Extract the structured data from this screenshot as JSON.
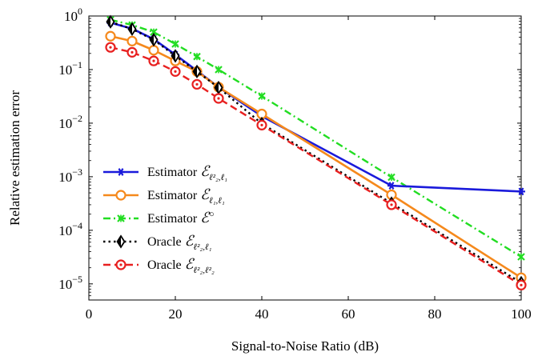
{
  "chart_data": {
    "type": "line",
    "xlabel": "Signal-to-Noise Ratio (dB)",
    "ylabel": "Relative estimation error",
    "xlim": [
      0,
      100
    ],
    "ylim": [
      5e-06,
      1
    ],
    "yscale": "log",
    "grid": false,
    "legend_position": "lower-left",
    "xticks": [
      0,
      20,
      40,
      60,
      80,
      100
    ],
    "xtick_labels": [
      "0",
      "20",
      "40",
      "60",
      "80",
      "100"
    ],
    "yticks": [
      1e-05,
      0.0001,
      0.001,
      0.01,
      0.1,
      1
    ],
    "ytick_labels": [
      {
        "base": "10",
        "exp": "−5"
      },
      {
        "base": "10",
        "exp": "−4"
      },
      {
        "base": "10",
        "exp": "−3"
      },
      {
        "base": "10",
        "exp": "−2"
      },
      {
        "base": "10",
        "exp": "−1"
      },
      {
        "base": "10",
        "exp": "0"
      }
    ],
    "series": [
      {
        "name": "Estimator E_{ℓ2², ℓ1}",
        "legend": {
          "prefix": "Estimator ",
          "letter": "ℰ",
          "sub_html": "ℓ<tspan baseline-shift='super' font-size='8'>2</tspan><tspan font-size='8' dx='-6' baseline-shift='-3'>2</tspan>,ℓ<tspan font-size='8' baseline-shift='-3'>1</tspan>",
          "sub": "ℓ²₂,ℓ₁",
          "sup": ""
        },
        "color": "#1a1adb",
        "dash": "solid",
        "marker": "star",
        "x": [
          5,
          10,
          15,
          20,
          25,
          30,
          40,
          70,
          100
        ],
        "y": [
          0.75,
          0.58,
          0.37,
          0.19,
          0.095,
          0.047,
          0.0135,
          0.00068,
          0.00053
        ]
      },
      {
        "name": "Estimator E_{ℓ1, ℓ1}",
        "legend": {
          "prefix": "Estimator ",
          "letter": "ℰ",
          "sub": "ℓ₁,ℓ₁",
          "sup": ""
        },
        "color": "#f5891c",
        "dash": "solid",
        "marker": "circle",
        "x": [
          5,
          10,
          15,
          20,
          25,
          30,
          40,
          70,
          100
        ],
        "y": [
          0.42,
          0.34,
          0.23,
          0.145,
          0.092,
          0.047,
          0.0148,
          0.00046,
          1.3e-05
        ]
      },
      {
        "name": "Estimator E°",
        "legend": {
          "prefix": "Estimator ",
          "letter": "ℰ",
          "sub": "",
          "sup": "○"
        },
        "color": "#22dd22",
        "dash": "dashdot",
        "marker": "x",
        "x": [
          5,
          10,
          15,
          20,
          25,
          30,
          40,
          70,
          100
        ],
        "y": [
          0.85,
          0.68,
          0.5,
          0.3,
          0.175,
          0.1,
          0.032,
          0.00098,
          3.2e-05
        ]
      },
      {
        "name": "Oracle E_{ℓ2², ℓ1}",
        "legend": {
          "prefix": "Oracle ",
          "letter": "ℰ",
          "sub": "ℓ²₂,ℓ₁",
          "sup": ""
        },
        "color": "#000000",
        "dash": "dotted",
        "marker": "diamond",
        "x": [
          5,
          10,
          15,
          20,
          25,
          30,
          40,
          70,
          100
        ],
        "y": [
          0.78,
          0.57,
          0.36,
          0.18,
          0.092,
          0.046,
          0.0098,
          0.00032,
          1.05e-05
        ]
      },
      {
        "name": "Oracle E_{ℓ2², ℓ2²}",
        "legend": {
          "prefix": "Oracle ",
          "letter": "ℰ",
          "sub": "ℓ²₂,ℓ²₂",
          "sup": ""
        },
        "color": "#e82020",
        "dash": "dashed",
        "marker": "circle-dot",
        "x": [
          5,
          10,
          15,
          20,
          25,
          30,
          40,
          70,
          100
        ],
        "y": [
          0.26,
          0.21,
          0.145,
          0.092,
          0.053,
          0.029,
          0.0092,
          0.0003,
          9.5e-06
        ]
      }
    ]
  }
}
